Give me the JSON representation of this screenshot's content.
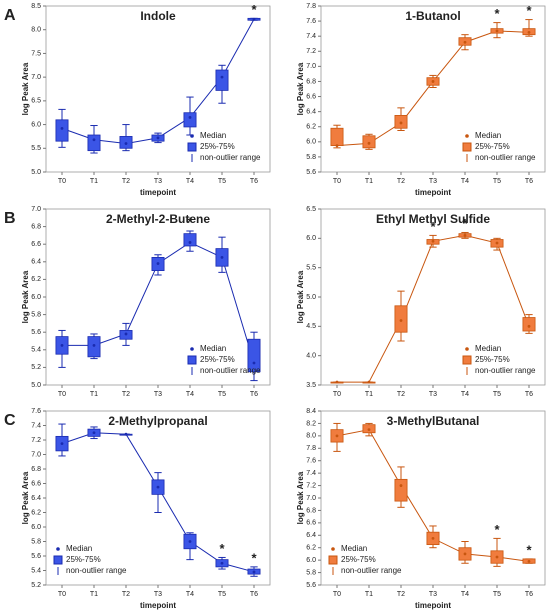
{
  "panel_labels": [
    "A",
    "B",
    "C"
  ],
  "chart_data": [
    {
      "type": "box",
      "title": "Indole",
      "xlabel": "timepoint",
      "ylabel": "log Peak Area",
      "categories": [
        "T0",
        "T1",
        "T2",
        "T3",
        "T4",
        "T5",
        "T6"
      ],
      "color": "#3b55e6",
      "edge_color": "#1a2bb0",
      "legend_position": "lower right",
      "legend": {
        "median": "Median",
        "box": "25%-75%",
        "range": "non-outlier range"
      },
      "ylim": [
        5.0,
        8.5
      ],
      "yticks": [
        {
          "value": 5,
          "label": "5.0"
        },
        5.5,
        {
          "value": 6,
          "label": "6.0"
        },
        6.5,
        {
          "value": 7,
          "label": "7.0"
        },
        7.5,
        {
          "value": 8,
          "label": "8.0"
        },
        8.5
      ],
      "median": [
        5.92,
        5.68,
        5.6,
        5.72,
        6.15,
        7.0,
        8.22
      ],
      "q1": [
        5.65,
        5.45,
        5.5,
        5.65,
        5.95,
        6.72,
        8.2
      ],
      "q3": [
        6.1,
        5.78,
        5.75,
        5.78,
        6.25,
        7.15,
        8.24
      ],
      "whisker_low": [
        5.52,
        5.4,
        5.45,
        5.62,
        5.78,
        6.45,
        8.2
      ],
      "whisker_high": [
        6.32,
        5.98,
        6.0,
        5.82,
        6.58,
        7.25,
        8.24
      ],
      "stars": [
        null,
        null,
        null,
        null,
        null,
        null,
        "*"
      ]
    },
    {
      "type": "box",
      "title": "1-Butanol",
      "xlabel": "timepoint",
      "ylabel": "log Peak Area",
      "categories": [
        "T0",
        "T1",
        "T2",
        "T3",
        "T4",
        "T5",
        "T6"
      ],
      "color": "#f07c3e",
      "edge_color": "#c8560f",
      "legend_position": "lower right",
      "legend": {
        "median": "Median",
        "box": "25%-75%",
        "range": "non-outlier range"
      },
      "ylim": [
        5.6,
        7.8
      ],
      "yticks": [
        5.6,
        5.8,
        {
          "value": 6,
          "label": "6.0"
        },
        6.2,
        6.4,
        6.6,
        6.8,
        {
          "value": 7,
          "label": "7.0"
        },
        7.2,
        7.4,
        7.6,
        7.8
      ],
      "median": [
        5.95,
        5.98,
        6.25,
        6.8,
        7.32,
        7.47,
        7.45
      ],
      "q1": [
        5.95,
        5.92,
        6.18,
        6.75,
        7.28,
        7.44,
        7.42
      ],
      "q3": [
        6.18,
        6.08,
        6.35,
        6.85,
        7.38,
        7.5,
        7.5
      ],
      "whisker_low": [
        5.92,
        5.9,
        6.15,
        6.72,
        7.22,
        7.38,
        7.4
      ],
      "whisker_high": [
        6.22,
        6.1,
        6.45,
        6.88,
        7.42,
        7.58,
        7.62
      ],
      "stars": [
        null,
        null,
        null,
        null,
        null,
        "*",
        "*"
      ]
    },
    {
      "type": "box",
      "title": "2-Methyl-2-Butene",
      "ylabel": "log Peak Area",
      "categories": [
        "T0",
        "T1",
        "T2",
        "T3",
        "T4",
        "T5",
        "T6"
      ],
      "color": "#3b55e6",
      "edge_color": "#1a2bb0",
      "legend_position": "lower right",
      "legend": {
        "median": "Median",
        "box": "25%-75%",
        "range": "non-outlier range"
      },
      "ylim": [
        5.0,
        7.0
      ],
      "yticks": [
        {
          "value": 5,
          "label": "5.0"
        },
        5.2,
        5.4,
        5.6,
        5.8,
        {
          "value": 6,
          "label": "6.0"
        },
        6.2,
        6.4,
        6.6,
        6.8,
        {
          "value": 7,
          "label": "7.0"
        }
      ],
      "median": [
        5.45,
        5.45,
        5.58,
        6.38,
        6.62,
        6.45,
        5.25
      ],
      "q1": [
        5.35,
        5.32,
        5.52,
        6.3,
        6.58,
        6.35,
        5.15
      ],
      "q3": [
        5.55,
        5.55,
        5.62,
        6.45,
        6.72,
        6.55,
        5.52
      ],
      "whisker_low": [
        5.2,
        5.3,
        5.45,
        6.25,
        6.52,
        6.28,
        5.05
      ],
      "whisker_high": [
        5.62,
        5.58,
        5.7,
        6.48,
        6.75,
        6.68,
        5.6
      ],
      "stars": [
        null,
        null,
        null,
        null,
        "*",
        null,
        null
      ]
    },
    {
      "type": "box",
      "title": "Ethyl Methyl Sulfide",
      "ylabel": "log Peak Area",
      "categories": [
        "T0",
        "T1",
        "T2",
        "T3",
        "T4",
        "T5",
        "T6"
      ],
      "color": "#f07c3e",
      "edge_color": "#c8560f",
      "legend_position": "lower right",
      "legend": {
        "median": "Median",
        "box": "25%-75%",
        "range": "non-outlier range"
      },
      "ylim": [
        3.5,
        6.5
      ],
      "yticks": [
        3.5,
        {
          "value": 4,
          "label": "4.0"
        },
        4.5,
        {
          "value": 5,
          "label": "5.0"
        },
        5.5,
        {
          "value": 6,
          "label": "6.0"
        },
        6.5
      ],
      "median": [
        3.55,
        3.55,
        4.6,
        5.95,
        6.05,
        5.92,
        4.5
      ],
      "q1": [
        3.55,
        3.55,
        4.4,
        5.9,
        6.02,
        5.85,
        4.42
      ],
      "q3": [
        3.55,
        3.55,
        4.85,
        5.98,
        6.08,
        5.98,
        4.65
      ],
      "whisker_low": [
        3.55,
        3.55,
        4.25,
        5.85,
        6.0,
        5.8,
        4.38
      ],
      "whisker_high": [
        3.55,
        3.55,
        5.1,
        6.05,
        6.1,
        6.0,
        4.7
      ],
      "stars": [
        null,
        null,
        null,
        "*",
        "*",
        null,
        null
      ]
    },
    {
      "type": "box",
      "title": "2-Methylpropanal",
      "xlabel": "timepoint",
      "ylabel": "log Peak Area",
      "categories": [
        "T0",
        "T1",
        "T2",
        "T3",
        "T4",
        "T5",
        "T6"
      ],
      "color": "#3b55e6",
      "edge_color": "#1a2bb0",
      "legend_position": "lower left",
      "legend": {
        "median": "Median",
        "box": "25%-75%",
        "range": "non-outlier range"
      },
      "ylim": [
        5.2,
        7.6
      ],
      "yticks": [
        5.2,
        5.4,
        5.6,
        5.8,
        {
          "value": 6,
          "label": "6.0"
        },
        6.2,
        6.4,
        6.6,
        6.8,
        {
          "value": 7,
          "label": "7.0"
        },
        7.2,
        7.4,
        7.6
      ],
      "median": [
        7.15,
        7.3,
        7.28,
        6.55,
        5.8,
        5.5,
        5.38
      ],
      "q1": [
        7.05,
        7.25,
        7.28,
        6.45,
        5.7,
        5.45,
        5.35
      ],
      "q3": [
        7.25,
        7.35,
        7.28,
        6.65,
        5.9,
        5.55,
        5.42
      ],
      "whisker_low": [
        6.98,
        7.22,
        7.28,
        6.2,
        5.55,
        5.42,
        5.32
      ],
      "whisker_high": [
        7.42,
        7.38,
        7.28,
        6.75,
        5.92,
        5.58,
        5.45
      ],
      "stars": [
        null,
        null,
        null,
        null,
        null,
        "*",
        "*"
      ]
    },
    {
      "type": "box",
      "title": "3-MethylButanal",
      "xlabel": "timepoint",
      "ylabel": "log Peak Area",
      "categories": [
        "T0",
        "T1",
        "T2",
        "T3",
        "T4",
        "T5",
        "T6"
      ],
      "color": "#f07c3e",
      "edge_color": "#c8560f",
      "legend_position": "lower left",
      "legend": {
        "median": "Median",
        "box": "25%-75%",
        "range": "non-outlier range"
      },
      "ylim": [
        5.6,
        8.4
      ],
      "yticks": [
        5.6,
        5.8,
        {
          "value": 6,
          "label": "6.0"
        },
        6.2,
        6.4,
        6.6,
        6.8,
        {
          "value": 7,
          "label": "7.0"
        },
        7.2,
        7.4,
        7.6,
        7.8,
        {
          "value": 8,
          "label": "8.0"
        },
        8.2,
        8.4
      ],
      "median": [
        8.0,
        8.1,
        7.2,
        6.35,
        6.1,
        6.05,
        5.98
      ],
      "q1": [
        7.9,
        8.05,
        6.95,
        6.25,
        6.0,
        5.95,
        5.95
      ],
      "q3": [
        8.1,
        8.18,
        7.3,
        6.45,
        6.2,
        6.15,
        6.02
      ],
      "whisker_low": [
        7.75,
        8.0,
        6.85,
        6.2,
        5.95,
        5.9,
        5.95
      ],
      "whisker_high": [
        8.2,
        8.2,
        7.5,
        6.55,
        6.3,
        6.35,
        6.02
      ],
      "stars": [
        null,
        null,
        null,
        null,
        null,
        "*",
        "*"
      ]
    }
  ]
}
